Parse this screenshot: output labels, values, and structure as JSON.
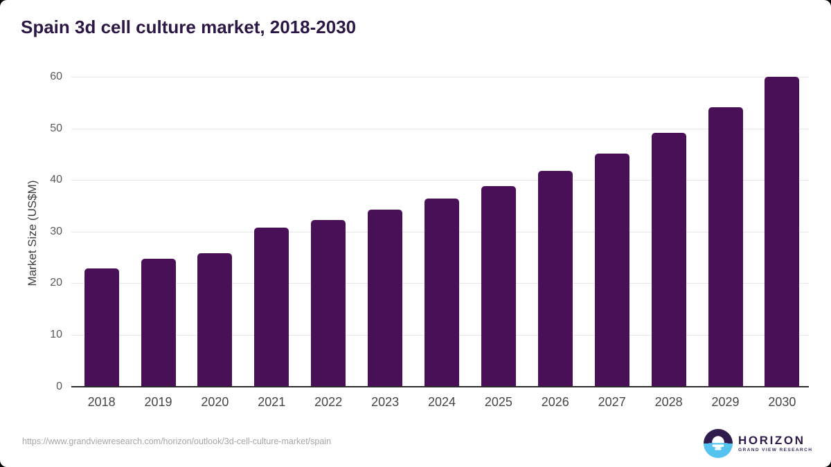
{
  "page": {
    "title": "Spain 3d cell culture market, 2018-2030",
    "source_url": "https://www.grandviewresearch.com/horizon/outlook/3d-cell-culture-market/spain"
  },
  "branding": {
    "logo_text": "HORIZON",
    "logo_subtext": "GRAND VIEW RESEARCH",
    "logo_icon": "horizon-sunset-icon",
    "logo_purple": "#2f1c4d",
    "logo_blue": "#55c3f0"
  },
  "chart_data": {
    "type": "bar",
    "title": "Spain 3d cell culture market, 2018-2030",
    "categories": [
      "2018",
      "2019",
      "2020",
      "2021",
      "2022",
      "2023",
      "2024",
      "2025",
      "2026",
      "2027",
      "2028",
      "2029",
      "2030"
    ],
    "values": [
      22.8,
      24.8,
      25.8,
      30.8,
      32.3,
      34.3,
      36.4,
      38.8,
      41.7,
      45.1,
      49.2,
      54.1,
      60.0
    ],
    "xlabel": "",
    "ylabel": "Market Size (US$M)",
    "ylim": [
      0,
      60
    ],
    "yticks": [
      0,
      10,
      20,
      30,
      40,
      50,
      60
    ],
    "grid": true,
    "legend": false,
    "bar_color": "#4a1057",
    "gridline_color": "#e7e7e7",
    "axis_line_color": "#2b2b2b"
  }
}
